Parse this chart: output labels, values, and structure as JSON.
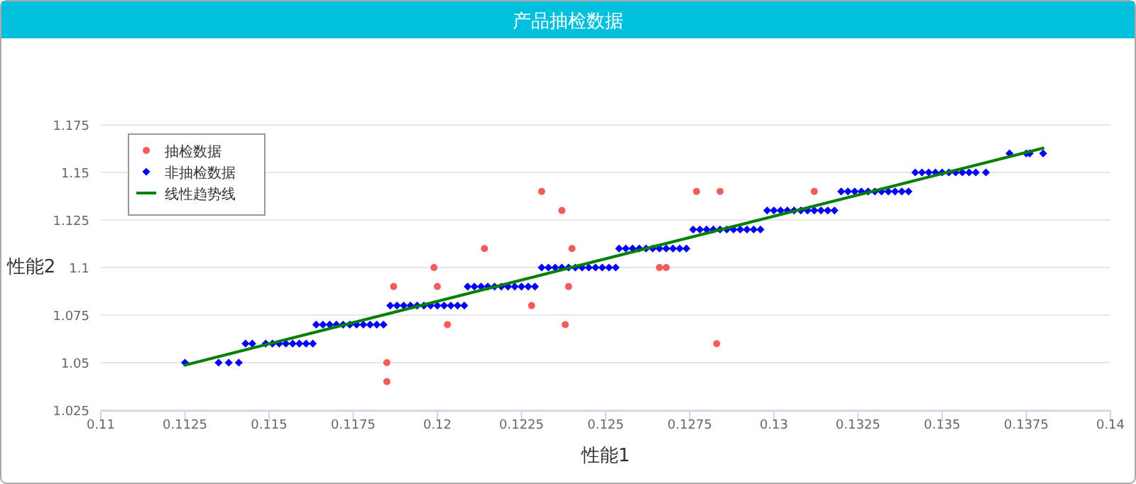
{
  "chart_data": {
    "type": "scatter",
    "title": "产品抽检数据",
    "xlabel": "性能1",
    "ylabel": "性能2",
    "xlim": [
      0.11,
      0.14
    ],
    "xticks": [
      0.11,
      0.1125,
      0.115,
      0.1175,
      0.12,
      0.1225,
      0.125,
      0.1275,
      0.13,
      0.1325,
      0.135,
      0.1375,
      0.14
    ],
    "ylim": [
      1.025,
      1.175
    ],
    "yticks": [
      1.025,
      1.05,
      1.075,
      1.1,
      1.125,
      1.15,
      1.175
    ],
    "grid": "y",
    "legend": "top left",
    "series": [
      {
        "name": "抽检数据",
        "type": "scatter",
        "marker": "circle",
        "color": "#f45b5b",
        "x": [
          0.1185,
          0.1185,
          0.1187,
          0.1199,
          0.12,
          0.1203,
          0.1214,
          0.1228,
          0.1231,
          0.1237,
          0.124,
          0.1239,
          0.1238,
          0.1266,
          0.1268,
          0.1277,
          0.1284,
          0.1283,
          0.1312
        ],
        "values": [
          1.05,
          1.04,
          1.09,
          1.1,
          1.09,
          1.07,
          1.11,
          1.08,
          1.14,
          1.13,
          1.11,
          1.09,
          1.07,
          1.1,
          1.1,
          1.14,
          1.14,
          1.06,
          1.14
        ]
      },
      {
        "name": "非抽检数据",
        "type": "scatter",
        "marker": "diamond",
        "color": "#0000ff",
        "x": [
          0.1125,
          0.1135,
          0.1138,
          0.1141,
          0.1143,
          0.1145,
          0.1149,
          0.1151,
          0.1153,
          0.1155,
          0.1157,
          0.1159,
          0.1161,
          0.1163,
          0.1164,
          0.1166,
          0.1168,
          0.117,
          0.1172,
          0.1174,
          0.1176,
          0.1178,
          0.118,
          0.1182,
          0.1184,
          0.1186,
          0.1188,
          0.119,
          0.1192,
          0.1194,
          0.1196,
          0.1198,
          0.12,
          0.1202,
          0.1204,
          0.1206,
          0.1208,
          0.1209,
          0.1211,
          0.1213,
          0.1215,
          0.1217,
          0.1219,
          0.1221,
          0.1223,
          0.1225,
          0.1227,
          0.1229,
          0.1231,
          0.1233,
          0.1235,
          0.1237,
          0.1239,
          0.1241,
          0.1243,
          0.1245,
          0.1247,
          0.1249,
          0.1251,
          0.1253,
          0.1254,
          0.1256,
          0.1258,
          0.126,
          0.1262,
          0.1264,
          0.1266,
          0.1268,
          0.127,
          0.1272,
          0.1274,
          0.1276,
          0.1278,
          0.128,
          0.1282,
          0.1284,
          0.1286,
          0.1288,
          0.129,
          0.1292,
          0.1294,
          0.1296,
          0.1298,
          0.13,
          0.1302,
          0.1304,
          0.1306,
          0.1308,
          0.131,
          0.1312,
          0.1314,
          0.1316,
          0.1318,
          0.132,
          0.1322,
          0.1324,
          0.1326,
          0.1328,
          0.133,
          0.1332,
          0.1334,
          0.1336,
          0.1338,
          0.134,
          0.1342,
          0.1344,
          0.1346,
          0.1348,
          0.135,
          0.1352,
          0.1354,
          0.1356,
          0.1358,
          0.136,
          0.1363,
          0.137,
          0.1375,
          0.1376,
          0.138
        ],
        "values": [
          1.05,
          1.05,
          1.05,
          1.05,
          1.06,
          1.06,
          1.06,
          1.06,
          1.06,
          1.06,
          1.06,
          1.06,
          1.06,
          1.06,
          1.07,
          1.07,
          1.07,
          1.07,
          1.07,
          1.07,
          1.07,
          1.07,
          1.07,
          1.07,
          1.07,
          1.08,
          1.08,
          1.08,
          1.08,
          1.08,
          1.08,
          1.08,
          1.08,
          1.08,
          1.08,
          1.08,
          1.08,
          1.09,
          1.09,
          1.09,
          1.09,
          1.09,
          1.09,
          1.09,
          1.09,
          1.09,
          1.09,
          1.09,
          1.1,
          1.1,
          1.1,
          1.1,
          1.1,
          1.1,
          1.1,
          1.1,
          1.1,
          1.1,
          1.1,
          1.1,
          1.11,
          1.11,
          1.11,
          1.11,
          1.11,
          1.11,
          1.11,
          1.11,
          1.11,
          1.11,
          1.11,
          1.12,
          1.12,
          1.12,
          1.12,
          1.12,
          1.12,
          1.12,
          1.12,
          1.12,
          1.12,
          1.12,
          1.13,
          1.13,
          1.13,
          1.13,
          1.13,
          1.13,
          1.13,
          1.13,
          1.13,
          1.13,
          1.13,
          1.14,
          1.14,
          1.14,
          1.14,
          1.14,
          1.14,
          1.14,
          1.14,
          1.14,
          1.14,
          1.14,
          1.15,
          1.15,
          1.15,
          1.15,
          1.15,
          1.15,
          1.15,
          1.15,
          1.15,
          1.15,
          1.15,
          1.16,
          1.16,
          1.16,
          1.16
        ]
      },
      {
        "name": "线性趋势线",
        "type": "line",
        "marker": "none",
        "line_style": "solid",
        "color": "#008000",
        "x": [
          0.1125,
          0.138
        ],
        "values": [
          1.0487,
          1.1628
        ]
      }
    ]
  }
}
